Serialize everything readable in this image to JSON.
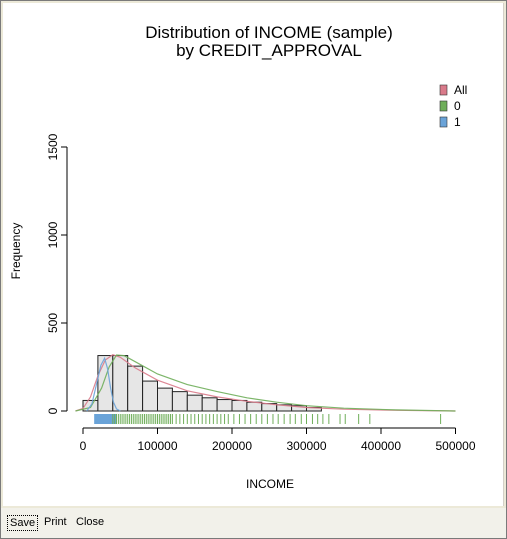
{
  "footer": {
    "save_label": "Save",
    "print_label": "Print",
    "close_label": "Close"
  },
  "chart_data": {
    "type": "bar",
    "title": "Distribution of INCOME (sample)",
    "subtitle": "by CREDIT_APPROVAL",
    "xlabel": "INCOME",
    "ylabel": "Frequency",
    "xlim": [
      -25000,
      520000
    ],
    "ylim": [
      0,
      1500
    ],
    "x_ticks": [
      0,
      100000,
      200000,
      300000,
      400000,
      500000
    ],
    "x_tick_labels": [
      "0",
      "100000",
      "200000",
      "300000",
      "400000",
      "500000"
    ],
    "y_ticks": [
      0,
      500,
      1000,
      1500
    ],
    "y_tick_labels": [
      "0",
      "500",
      "1000",
      "1500"
    ],
    "bin_width": 20000,
    "bins": [
      0,
      20000,
      40000,
      60000,
      80000,
      100000,
      120000,
      140000,
      160000,
      180000,
      200000,
      220000,
      240000,
      260000,
      280000,
      300000
    ],
    "values": [
      60,
      315,
      315,
      255,
      170,
      130,
      110,
      90,
      75,
      65,
      60,
      50,
      42,
      35,
      30,
      20
    ],
    "legend": {
      "position": "top-right",
      "entries": [
        {
          "name": "All",
          "color": "#d97a8a"
        },
        {
          "name": "0",
          "color": "#6fae5a"
        },
        {
          "name": "1",
          "color": "#6aa3d8"
        }
      ]
    },
    "density_curves": [
      {
        "name": "All",
        "color": "#d97a8a",
        "points": [
          [
            -10000,
            0
          ],
          [
            0,
            15
          ],
          [
            10000,
            80
          ],
          [
            20000,
            200
          ],
          [
            30000,
            290
          ],
          [
            40000,
            320
          ],
          [
            50000,
            305
          ],
          [
            70000,
            245
          ],
          [
            100000,
            175
          ],
          [
            140000,
            115
          ],
          [
            180000,
            80
          ],
          [
            220000,
            55
          ],
          [
            260000,
            35
          ],
          [
            300000,
            20
          ],
          [
            350000,
            10
          ],
          [
            420000,
            4
          ],
          [
            500000,
            0
          ]
        ]
      },
      {
        "name": "0",
        "color": "#6fae5a",
        "points": [
          [
            -10000,
            0
          ],
          [
            10000,
            20
          ],
          [
            25000,
            130
          ],
          [
            35000,
            250
          ],
          [
            45000,
            318
          ],
          [
            55000,
            315
          ],
          [
            70000,
            280
          ],
          [
            100000,
            210
          ],
          [
            140000,
            150
          ],
          [
            180000,
            110
          ],
          [
            220000,
            75
          ],
          [
            260000,
            50
          ],
          [
            300000,
            30
          ],
          [
            350000,
            16
          ],
          [
            420000,
            6
          ],
          [
            500000,
            0
          ]
        ]
      },
      {
        "name": "1",
        "color": "#6aa3d8",
        "points": [
          [
            5000,
            0
          ],
          [
            12000,
            40
          ],
          [
            18000,
            150
          ],
          [
            24000,
            260
          ],
          [
            29000,
            300
          ],
          [
            33000,
            240
          ],
          [
            37000,
            130
          ],
          [
            41000,
            50
          ],
          [
            45000,
            12
          ],
          [
            50000,
            0
          ]
        ]
      }
    ],
    "rug": {
      "group_1": {
        "color": "#6aa3d8",
        "x_min": 15000,
        "x_max": 45000
      },
      "group_0": {
        "color": "#6fae5a",
        "dense_range": [
          40000,
          250000
        ],
        "sparse_x": [
          255000,
          262000,
          270000,
          278000,
          285000,
          293000,
          300000,
          308000,
          315000,
          322000,
          330000,
          345000,
          352000,
          370000,
          385000,
          480000
        ]
      }
    },
    "grid": false
  }
}
